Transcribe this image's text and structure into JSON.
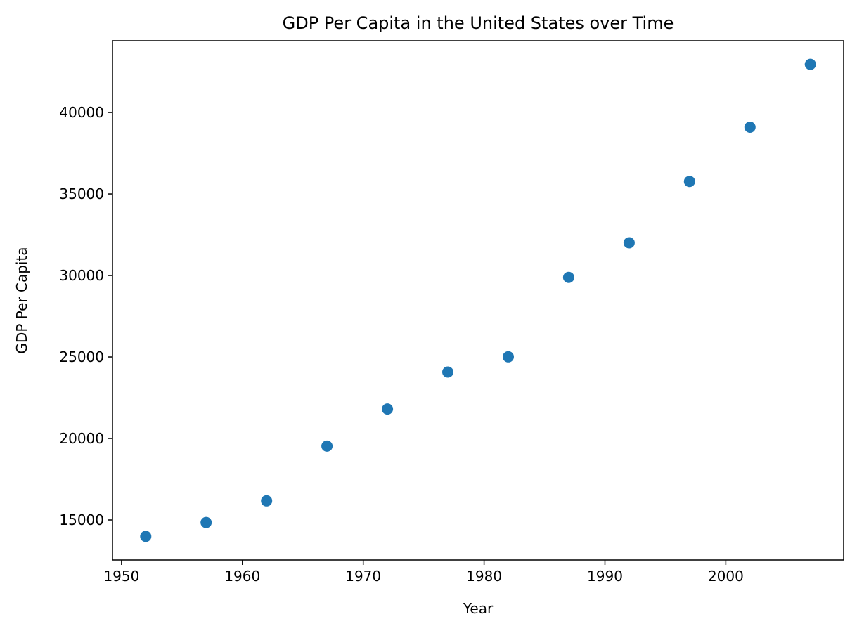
{
  "chart_data": {
    "type": "scatter",
    "title": "GDP Per Capita in the United States over Time",
    "xlabel": "Year",
    "ylabel": "GDP Per Capita",
    "x": [
      1952,
      1957,
      1962,
      1967,
      1972,
      1977,
      1982,
      1987,
      1992,
      1997,
      2002,
      2007
    ],
    "y": [
      13990,
      14847,
      16173,
      19530,
      21806,
      24073,
      25010,
      29884,
      32004,
      35767,
      39097,
      42952
    ],
    "xlim": [
      1949.25,
      2009.75
    ],
    "ylim": [
      12543,
      44399
    ],
    "xticks": [
      1950,
      1960,
      1970,
      1980,
      1990,
      2000
    ],
    "yticks": [
      15000,
      20000,
      25000,
      30000,
      35000,
      40000
    ],
    "marker_color": "#1f77b4",
    "grid": false,
    "legend": "none"
  }
}
